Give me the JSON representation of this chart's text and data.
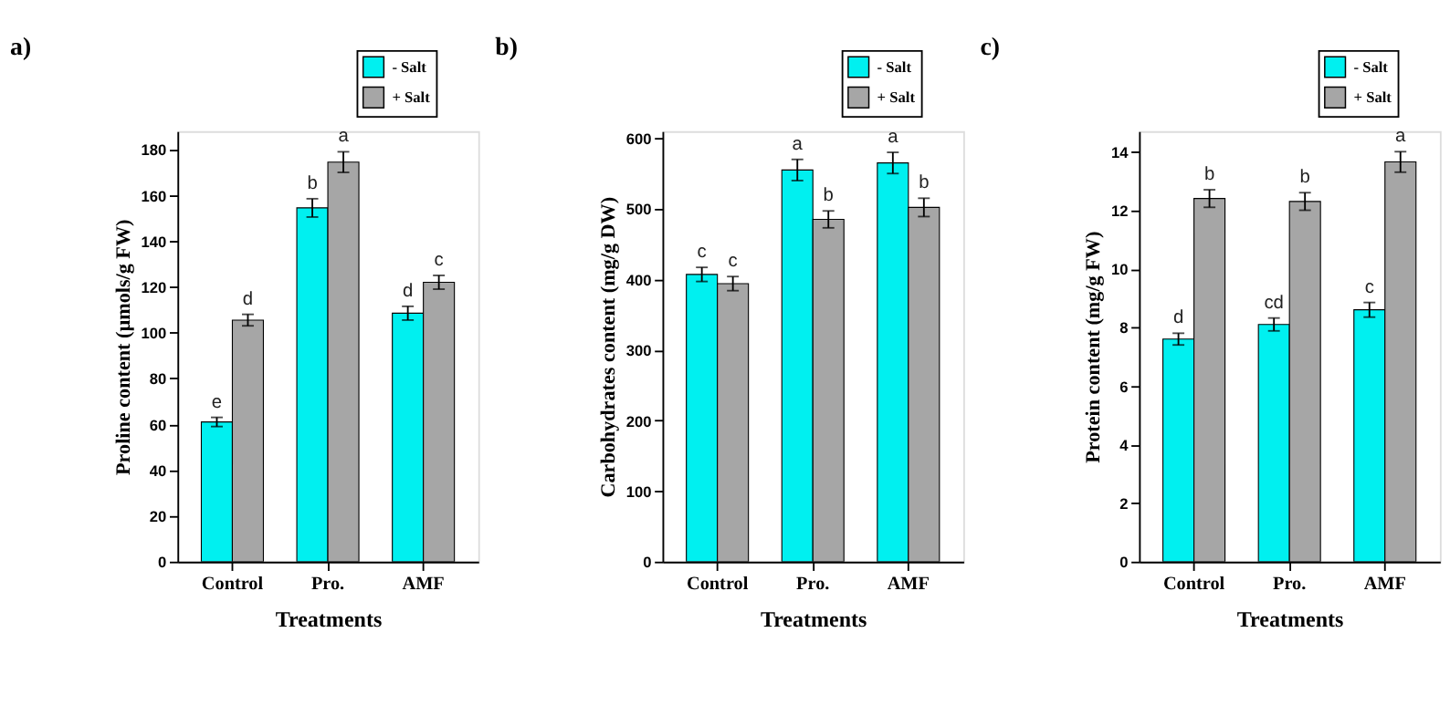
{
  "chart_data": [
    {
      "type": "bar",
      "title": "a)",
      "xlabel": "Treatments",
      "ylabel": "Proline content (µmols/g FW)",
      "categories": [
        "Control",
        "Pro.",
        "AMF"
      ],
      "ylim": [
        0,
        188
      ],
      "yticks": [
        0,
        20,
        40,
        60,
        80,
        100,
        120,
        140,
        160,
        180
      ],
      "legend": "top right",
      "grid": false,
      "series": [
        {
          "name": "- Salt",
          "color": "#00f0f0",
          "values": [
            61,
            154.5,
            108.5
          ],
          "errors": [
            2,
            4,
            3
          ],
          "value_labels": [
            "e",
            "b",
            "d"
          ]
        },
        {
          "name": "+ Salt",
          "color": "#a6a6a6",
          "values": [
            105.5,
            174.5,
            122
          ],
          "errors": [
            2.5,
            4.5,
            3
          ],
          "value_labels": [
            "d",
            "a",
            "c"
          ]
        }
      ]
    },
    {
      "type": "bar",
      "title": "b)",
      "xlabel": "Treatments",
      "ylabel": "Carbohydrates content (mg/g DW)",
      "categories": [
        "Control",
        "Pro.",
        "AMF"
      ],
      "ylim": [
        0,
        610
      ],
      "yticks": [
        0,
        100,
        200,
        300,
        400,
        500,
        600
      ],
      "legend": "top right",
      "grid": false,
      "series": [
        {
          "name": "- Salt",
          "color": "#00f0f0",
          "values": [
            407,
            555,
            565
          ],
          "errors": [
            10,
            15,
            15
          ],
          "value_labels": [
            "c",
            "a",
            "a"
          ]
        },
        {
          "name": "+ Salt",
          "color": "#a6a6a6",
          "values": [
            394,
            485,
            502
          ],
          "errors": [
            10,
            12,
            13
          ],
          "value_labels": [
            "c",
            "b",
            "b"
          ]
        }
      ]
    },
    {
      "type": "bar",
      "title": "c)",
      "xlabel": "Treatments",
      "ylabel": "Protein content (mg/g FW)",
      "categories": [
        "Control",
        "Pro.",
        "AMF"
      ],
      "ylim": [
        0,
        14.7
      ],
      "yticks": [
        0,
        2,
        4,
        6,
        8,
        10,
        12,
        14
      ],
      "legend": "top right",
      "grid": false,
      "series": [
        {
          "name": "- Salt",
          "color": "#00f0f0",
          "values": [
            7.6,
            8.1,
            8.6
          ],
          "errors": [
            0.2,
            0.22,
            0.25
          ],
          "value_labels": [
            "d",
            "cd",
            "c"
          ]
        },
        {
          "name": "+ Salt",
          "color": "#a6a6a6",
          "values": [
            12.4,
            12.3,
            13.65
          ],
          "errors": [
            0.3,
            0.3,
            0.35
          ],
          "value_labels": [
            "b",
            "b",
            "a"
          ]
        }
      ]
    }
  ]
}
